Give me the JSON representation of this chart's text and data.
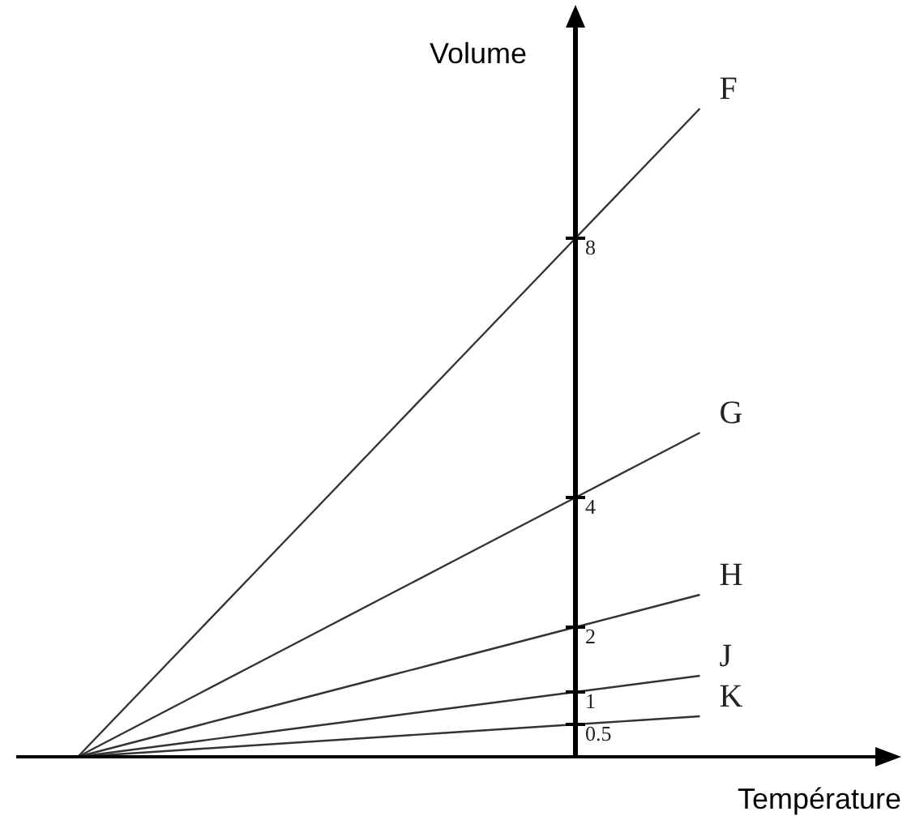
{
  "chart_data": {
    "type": "line",
    "xlabel": "Température",
    "ylabel": "Volume",
    "categories": [
      null,
      null,
      null,
      null,
      null,
      null,
      null,
      null,
      null,
      null,
      null
    ],
    "ylim": [
      0,
      11.4
    ],
    "yticks": [
      0.5,
      1,
      2,
      4,
      8
    ],
    "grid": false,
    "marker": "none",
    "line_style": "solid",
    "series": [
      {
        "name": "F",
        "color": "#333333",
        "values": [
          0,
          1,
          2,
          3,
          4,
          5,
          6,
          7,
          8,
          9,
          10
        ]
      },
      {
        "name": "G",
        "color": "#333333",
        "values": [
          0,
          0.5,
          1,
          1.5,
          2,
          2.5,
          3,
          3.5,
          4,
          4.5,
          5
        ]
      },
      {
        "name": "H",
        "color": "#333333",
        "values": [
          0,
          0.25,
          0.5,
          0.75,
          1,
          1.25,
          1.5,
          1.75,
          2,
          2.25,
          2.5
        ]
      },
      {
        "name": "J",
        "color": "#333333",
        "values": [
          0,
          0.125,
          0.25,
          0.375,
          0.5,
          0.625,
          0.75,
          0.875,
          1,
          1.125,
          1.25
        ]
      },
      {
        "name": "K",
        "color": "#333333",
        "values": [
          0,
          0.0625,
          0.125,
          0.1875,
          0.25,
          0.3125,
          0.375,
          0.4375,
          0.5,
          0.5625,
          0.625
        ]
      }
    ]
  }
}
